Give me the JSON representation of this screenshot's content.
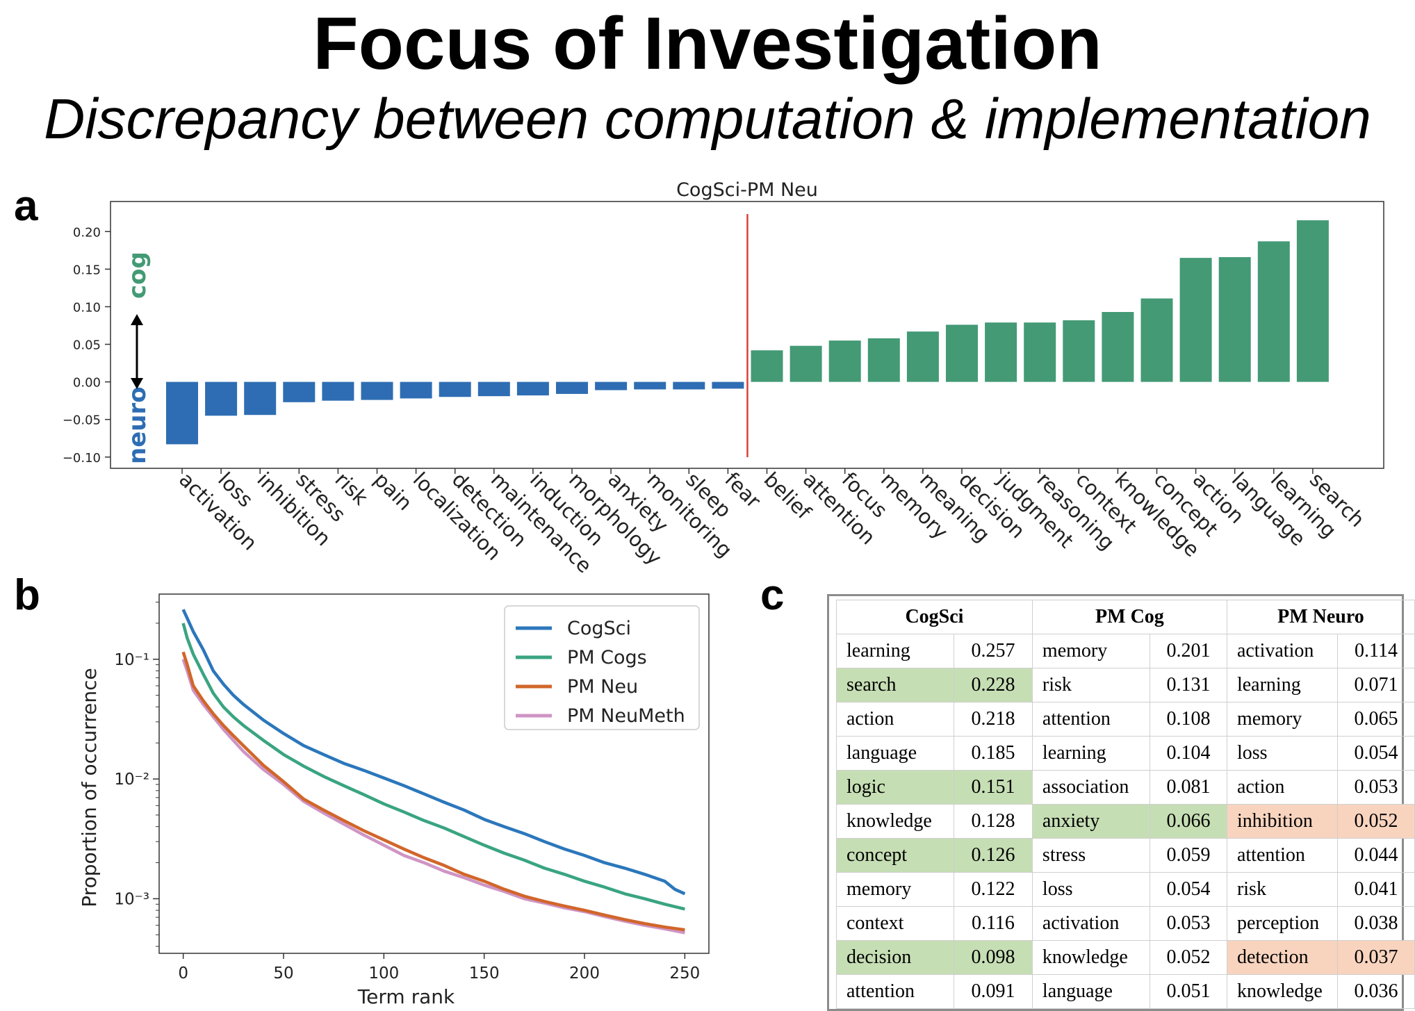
{
  "slide": {
    "title": "Focus of Investigation",
    "subtitle": "Discrepancy between computation & implementation"
  },
  "panels": {
    "a": "a",
    "b": "b",
    "c": "c"
  },
  "colors": {
    "neuro": "#2e6db3",
    "cog": "#439a75",
    "divider": "#d9413a",
    "cogsci": "#2b77bb",
    "pm_cogs": "#3aa482",
    "pm_neu": "#d1662a",
    "pm_neumeth": "#cf94c4",
    "highlight_green": "#c6deb4",
    "highlight_orange": "#f8d4bf"
  },
  "chart_data": [
    {
      "type": "bar",
      "title": "CogSci-PM Neu",
      "categories": [
        "activation",
        "loss",
        "inhibition",
        "stress",
        "risk",
        "pain",
        "localization",
        "detection",
        "maintenance",
        "induction",
        "morphology",
        "anxiety",
        "monitoring",
        "sleep",
        "fear",
        "belief",
        "attention",
        "focus",
        "memory",
        "meaning",
        "decision",
        "judgment",
        "reasoning",
        "context",
        "knowledge",
        "concept",
        "action",
        "language",
        "learning",
        "search"
      ],
      "values": [
        -0.083,
        -0.045,
        -0.044,
        -0.027,
        -0.025,
        -0.024,
        -0.022,
        -0.02,
        -0.019,
        -0.018,
        -0.016,
        -0.011,
        -0.01,
        -0.01,
        -0.009,
        0.042,
        0.048,
        0.055,
        0.058,
        0.067,
        0.076,
        0.079,
        0.079,
        0.082,
        0.093,
        0.111,
        0.165,
        0.166,
        0.187,
        0.215
      ],
      "bar_colors": [
        "neuro",
        "neuro",
        "neuro",
        "neuro",
        "neuro",
        "neuro",
        "neuro",
        "neuro",
        "neuro",
        "neuro",
        "neuro",
        "neuro",
        "neuro",
        "neuro",
        "neuro",
        "cog",
        "cog",
        "cog",
        "cog",
        "cog",
        "cog",
        "cog",
        "cog",
        "cog",
        "cog",
        "cog",
        "cog",
        "cog",
        "cog",
        "cog"
      ],
      "yticks": [
        "0.20",
        "0.15",
        "0.10",
        "0.05",
        "0.00",
        "−0.05",
        "−0.10"
      ],
      "ylim": [
        -0.115,
        0.24
      ],
      "annotations": {
        "top": "cog",
        "bottom": "neuro"
      },
      "divider_after_index": 14,
      "grid": false
    },
    {
      "type": "line",
      "xlabel": "Term rank",
      "ylabel": "Proportion of occurrence",
      "y_scale": "log",
      "xlim": [
        -12,
        262
      ],
      "ylim": [
        0.00035,
        0.35
      ],
      "xticks": [
        "0",
        "50",
        "100",
        "150",
        "200",
        "250"
      ],
      "yticks": [
        "10⁻¹",
        "10⁻²",
        "10⁻³"
      ],
      "legend_position": "top-right",
      "series": [
        {
          "name": "CogSci",
          "color": "cogsci",
          "points": [
            [
              0,
              0.26
            ],
            [
              2,
              0.22
            ],
            [
              5,
              0.17
            ],
            [
              10,
              0.12
            ],
            [
              15,
              0.08
            ],
            [
              20,
              0.062
            ],
            [
              25,
              0.05
            ],
            [
              30,
              0.042
            ],
            [
              40,
              0.031
            ],
            [
              50,
              0.024
            ],
            [
              60,
              0.019
            ],
            [
              70,
              0.016
            ],
            [
              80,
              0.0135
            ],
            [
              90,
              0.0118
            ],
            [
              100,
              0.0102
            ],
            [
              110,
              0.0088
            ],
            [
              120,
              0.0075
            ],
            [
              130,
              0.0064
            ],
            [
              140,
              0.0055
            ],
            [
              150,
              0.0046
            ],
            [
              160,
              0.004
            ],
            [
              170,
              0.0035
            ],
            [
              180,
              0.003
            ],
            [
              190,
              0.0026
            ],
            [
              200,
              0.0023
            ],
            [
              210,
              0.002
            ],
            [
              220,
              0.0018
            ],
            [
              230,
              0.0016
            ],
            [
              240,
              0.0014
            ],
            [
              245,
              0.0012
            ],
            [
              250,
              0.0011
            ]
          ]
        },
        {
          "name": "PM Cogs",
          "color": "pm_cogs",
          "points": [
            [
              0,
              0.2
            ],
            [
              2,
              0.15
            ],
            [
              5,
              0.11
            ],
            [
              10,
              0.075
            ],
            [
              15,
              0.052
            ],
            [
              20,
              0.04
            ],
            [
              25,
              0.033
            ],
            [
              30,
              0.028
            ],
            [
              40,
              0.021
            ],
            [
              50,
              0.016
            ],
            [
              60,
              0.0128
            ],
            [
              70,
              0.0105
            ],
            [
              80,
              0.0088
            ],
            [
              90,
              0.0074
            ],
            [
              100,
              0.0062
            ],
            [
              110,
              0.0053
            ],
            [
              120,
              0.0045
            ],
            [
              130,
              0.0039
            ],
            [
              140,
              0.0033
            ],
            [
              150,
              0.0028
            ],
            [
              160,
              0.0024
            ],
            [
              170,
              0.0021
            ],
            [
              180,
              0.0018
            ],
            [
              190,
              0.0016
            ],
            [
              200,
              0.0014
            ],
            [
              210,
              0.00125
            ],
            [
              220,
              0.0011
            ],
            [
              230,
              0.001
            ],
            [
              240,
              0.0009
            ],
            [
              250,
              0.00082
            ]
          ]
        },
        {
          "name": "PM Neu",
          "color": "pm_neu",
          "points": [
            [
              0,
              0.115
            ],
            [
              2,
              0.09
            ],
            [
              5,
              0.06
            ],
            [
              10,
              0.045
            ],
            [
              15,
              0.035
            ],
            [
              20,
              0.028
            ],
            [
              25,
              0.023
            ],
            [
              30,
              0.019
            ],
            [
              40,
              0.013
            ],
            [
              50,
              0.0095
            ],
            [
              60,
              0.0068
            ],
            [
              70,
              0.0055
            ],
            [
              80,
              0.0045
            ],
            [
              90,
              0.0037
            ],
            [
              100,
              0.0031
            ],
            [
              110,
              0.0026
            ],
            [
              120,
              0.0022
            ],
            [
              130,
              0.0019
            ],
            [
              140,
              0.0016
            ],
            [
              150,
              0.0014
            ],
            [
              160,
              0.0012
            ],
            [
              170,
              0.00105
            ],
            [
              180,
              0.00095
            ],
            [
              190,
              0.00087
            ],
            [
              200,
              0.0008
            ],
            [
              210,
              0.00073
            ],
            [
              220,
              0.00067
            ],
            [
              230,
              0.00062
            ],
            [
              240,
              0.00058
            ],
            [
              250,
              0.00055
            ]
          ]
        },
        {
          "name": "PM NeuMeth",
          "color": "pm_neumeth",
          "points": [
            [
              0,
              0.1
            ],
            [
              2,
              0.08
            ],
            [
              5,
              0.055
            ],
            [
              10,
              0.042
            ],
            [
              15,
              0.033
            ],
            [
              20,
              0.026
            ],
            [
              25,
              0.021
            ],
            [
              30,
              0.017
            ],
            [
              40,
              0.012
            ],
            [
              50,
              0.009
            ],
            [
              60,
              0.0065
            ],
            [
              70,
              0.0052
            ],
            [
              80,
              0.0042
            ],
            [
              90,
              0.0034
            ],
            [
              100,
              0.0028
            ],
            [
              110,
              0.0023
            ],
            [
              120,
              0.002
            ],
            [
              130,
              0.0017
            ],
            [
              140,
              0.0015
            ],
            [
              150,
              0.0013
            ],
            [
              160,
              0.00115
            ],
            [
              170,
              0.001
            ],
            [
              180,
              0.00092
            ],
            [
              190,
              0.00084
            ],
            [
              200,
              0.00078
            ],
            [
              210,
              0.00071
            ],
            [
              220,
              0.00065
            ],
            [
              230,
              0.0006
            ],
            [
              240,
              0.00056
            ],
            [
              250,
              0.00052
            ]
          ]
        }
      ]
    },
    {
      "type": "table",
      "columns": [
        "CogSci",
        "PM Cog",
        "PM Neuro"
      ],
      "rows": [
        [
          {
            "t": "learning",
            "v": "0.257",
            "h": ""
          },
          {
            "t": "memory",
            "v": "0.201",
            "h": ""
          },
          {
            "t": "activation",
            "v": "0.114",
            "h": ""
          }
        ],
        [
          {
            "t": "search",
            "v": "0.228",
            "h": "green"
          },
          {
            "t": "risk",
            "v": "0.131",
            "h": ""
          },
          {
            "t": "learning",
            "v": "0.071",
            "h": ""
          }
        ],
        [
          {
            "t": "action",
            "v": "0.218",
            "h": ""
          },
          {
            "t": "attention",
            "v": "0.108",
            "h": ""
          },
          {
            "t": "memory",
            "v": "0.065",
            "h": ""
          }
        ],
        [
          {
            "t": "language",
            "v": "0.185",
            "h": ""
          },
          {
            "t": "learning",
            "v": "0.104",
            "h": ""
          },
          {
            "t": "loss",
            "v": "0.054",
            "h": ""
          }
        ],
        [
          {
            "t": "logic",
            "v": "0.151",
            "h": "green"
          },
          {
            "t": "association",
            "v": "0.081",
            "h": ""
          },
          {
            "t": "action",
            "v": "0.053",
            "h": ""
          }
        ],
        [
          {
            "t": "knowledge",
            "v": "0.128",
            "h": ""
          },
          {
            "t": "anxiety",
            "v": "0.066",
            "h": "green"
          },
          {
            "t": "inhibition",
            "v": "0.052",
            "h": "orange"
          }
        ],
        [
          {
            "t": "concept",
            "v": "0.126",
            "h": "green"
          },
          {
            "t": "stress",
            "v": "0.059",
            "h": ""
          },
          {
            "t": "attention",
            "v": "0.044",
            "h": ""
          }
        ],
        [
          {
            "t": "memory",
            "v": "0.122",
            "h": ""
          },
          {
            "t": "loss",
            "v": "0.054",
            "h": ""
          },
          {
            "t": "risk",
            "v": "0.041",
            "h": ""
          }
        ],
        [
          {
            "t": "context",
            "v": "0.116",
            "h": ""
          },
          {
            "t": "activation",
            "v": "0.053",
            "h": ""
          },
          {
            "t": "perception",
            "v": "0.038",
            "h": ""
          }
        ],
        [
          {
            "t": "decision",
            "v": "0.098",
            "h": "green"
          },
          {
            "t": "knowledge",
            "v": "0.052",
            "h": ""
          },
          {
            "t": "detection",
            "v": "0.037",
            "h": "orange"
          }
        ],
        [
          {
            "t": "attention",
            "v": "0.091",
            "h": ""
          },
          {
            "t": "language",
            "v": "0.051",
            "h": ""
          },
          {
            "t": "knowledge",
            "v": "0.036",
            "h": ""
          }
        ]
      ]
    }
  ]
}
